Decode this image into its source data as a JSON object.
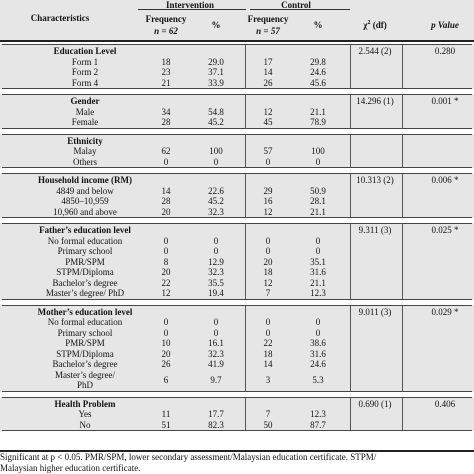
{
  "header": {
    "characteristics": "Characteristics",
    "intervention": "Intervention",
    "control": "Control",
    "frequency": "Frequency",
    "n_intervention": "n = 62",
    "n_control": "n = 57",
    "percent": "%",
    "chi_square": "χ",
    "chi_sup": "2",
    "chi_df": " (df)",
    "p_value": "p Value"
  },
  "sections": [
    {
      "title": "Education Level",
      "stat": "2.544 (2)",
      "p": "0.280",
      "rows": [
        {
          "label": "Form 1",
          "int_f": "18",
          "int_p": "29.0",
          "con_f": "17",
          "con_p": "29.8"
        },
        {
          "label": "Form 2",
          "int_f": "23",
          "int_p": "37.1",
          "con_f": "14",
          "con_p": "24.6"
        },
        {
          "label": "Form 4",
          "int_f": "21",
          "int_p": "33.9",
          "con_f": "26",
          "con_p": "45.6"
        }
      ]
    },
    {
      "title": "Gender",
      "stat": "14.296 (1)",
      "p": "0.001 *",
      "rows": [
        {
          "label": "Male",
          "int_f": "34",
          "int_p": "54.8",
          "con_f": "12",
          "con_p": "21.1"
        },
        {
          "label": "Female",
          "int_f": "28",
          "int_p": "45.2",
          "con_f": "45",
          "con_p": "78.9"
        }
      ]
    },
    {
      "title": "Ethnicity",
      "stat": "",
      "p": "",
      "rows": [
        {
          "label": "Malay",
          "int_f": "62",
          "int_p": "100",
          "con_f": "57",
          "con_p": "100"
        },
        {
          "label": "Others",
          "int_f": "0",
          "int_p": "0",
          "con_f": "0",
          "con_p": "0"
        }
      ]
    },
    {
      "title": "Household income (RM)",
      "stat": "10.313 (2)",
      "p": "0.006 *",
      "rows": [
        {
          "label": "4849 and below",
          "int_f": "14",
          "int_p": "22.6",
          "con_f": "29",
          "con_p": "50.9"
        },
        {
          "label": "4850–10,959",
          "int_f": "28",
          "int_p": "45.2",
          "con_f": "16",
          "con_p": "28.1"
        },
        {
          "label": "10,960 and above",
          "int_f": "20",
          "int_p": "32.3",
          "con_f": "12",
          "con_p": "21.1"
        }
      ]
    },
    {
      "title": "Father’s education level",
      "stat": "9.311 (3)",
      "p": "0.025 *",
      "rows": [
        {
          "label": "No formal education",
          "int_f": "0",
          "int_p": "0",
          "con_f": "0",
          "con_p": "0"
        },
        {
          "label": "Primary school",
          "int_f": "0",
          "int_p": "0",
          "con_f": "0",
          "con_p": "0"
        },
        {
          "label": "PMR/SPM",
          "int_f": "8",
          "int_p": "12.9",
          "con_f": "20",
          "con_p": "35.1"
        },
        {
          "label": "STPM/Diploma",
          "int_f": "20",
          "int_p": "32.3",
          "con_f": "18",
          "con_p": "31.6"
        },
        {
          "label": "Bachelor’s degree",
          "int_f": "22",
          "int_p": "35.5",
          "con_f": "12",
          "con_p": "21.1"
        },
        {
          "label": "Master’s degree/ PhD",
          "int_f": "12",
          "int_p": "19.4",
          "con_f": "7",
          "con_p": "12.3"
        }
      ]
    },
    {
      "title": "Mother’s education level",
      "stat": "9.011 (3)",
      "p": "0.029 *",
      "rows": [
        {
          "label": "No formal education",
          "int_f": "0",
          "int_p": "0",
          "con_f": "0",
          "con_p": "0"
        },
        {
          "label": "Primary school",
          "int_f": "0",
          "int_p": "0",
          "con_f": "0",
          "con_p": "0"
        },
        {
          "label": "PMR/SPM",
          "int_f": "10",
          "int_p": "16.1",
          "con_f": "22",
          "con_p": "38.6"
        },
        {
          "label": "STPM/Diploma",
          "int_f": "20",
          "int_p": "32.3",
          "con_f": "18",
          "con_p": "31.6"
        },
        {
          "label": "Bachelor’s degree",
          "int_f": "26",
          "int_p": "41.9",
          "con_f": "14",
          "con_p": "24.6"
        },
        {
          "label": "Master’s degree/",
          "label2": "PhD",
          "int_f": "6",
          "int_p": "9.7",
          "con_f": "3",
          "con_p": "5.3"
        }
      ]
    },
    {
      "title": "Health Problem",
      "stat": "0.690 (1)",
      "p": "0.406",
      "rows": [
        {
          "label": "Yes",
          "int_f": "11",
          "int_p": "17.7",
          "con_f": "7",
          "con_p": "12.3"
        },
        {
          "label": "No",
          "int_f": "51",
          "int_p": "82.3",
          "con_f": "50",
          "con_p": "87.7"
        }
      ]
    }
  ],
  "footnote": {
    "line1": "Significant at p < 0.05.  PMR/SPM, lower secondary assessment/Malaysian education certificate.  STPM/",
    "line2": "Malaysian higher education certificate."
  }
}
